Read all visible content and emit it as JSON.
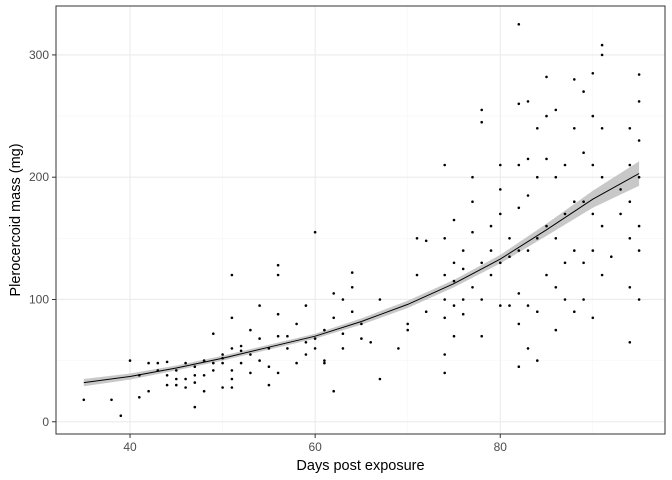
{
  "chart_data": {
    "type": "scatter",
    "title": "",
    "xlabel": "Days post exposure",
    "ylabel": "Plerocercoid mass (mg)",
    "xlim": [
      32.0,
      97.8
    ],
    "ylim": [
      -10,
      340
    ],
    "x_ticks": [
      40,
      60,
      80
    ],
    "y_ticks": [
      0,
      100,
      200,
      300
    ],
    "grid": true,
    "legend": "none",
    "colors": {
      "points": "#000000",
      "trend": "#000000",
      "ribbon": "#bebebe",
      "grid_major": "#ebebeb",
      "grid_minor": "#f5f5f5",
      "panel_border": "#333333"
    },
    "trend": {
      "label": "smooth fit",
      "x": [
        35,
        40,
        45,
        50,
        55,
        60,
        65,
        70,
        75,
        80,
        85,
        90,
        95
      ],
      "y": [
        32,
        37,
        44,
        52,
        61,
        70,
        82,
        96,
        113,
        133,
        157,
        182,
        203
      ],
      "ci_half_width": [
        3,
        2.5,
        2,
        2,
        2,
        2,
        2.5,
        3,
        3,
        3.5,
        5,
        7,
        10
      ]
    },
    "points": [
      [
        35,
        18
      ],
      [
        38,
        18
      ],
      [
        39,
        5
      ],
      [
        40,
        50
      ],
      [
        41,
        20
      ],
      [
        41,
        38
      ],
      [
        42,
        25
      ],
      [
        42,
        48
      ],
      [
        43,
        42
      ],
      [
        43,
        48
      ],
      [
        44,
        30
      ],
      [
        44,
        38
      ],
      [
        44,
        49
      ],
      [
        45,
        35
      ],
      [
        45,
        42
      ],
      [
        45,
        30
      ],
      [
        46,
        48
      ],
      [
        46,
        35
      ],
      [
        46,
        28
      ],
      [
        47,
        12
      ],
      [
        47,
        45
      ],
      [
        47,
        32
      ],
      [
        47,
        38
      ],
      [
        48,
        25
      ],
      [
        48,
        50
      ],
      [
        48,
        38
      ],
      [
        49,
        72
      ],
      [
        49,
        48
      ],
      [
        49,
        42
      ],
      [
        50,
        28
      ],
      [
        50,
        55
      ],
      [
        50,
        48
      ],
      [
        50,
        52
      ],
      [
        51,
        120
      ],
      [
        51,
        85
      ],
      [
        51,
        60
      ],
      [
        51,
        28
      ],
      [
        51,
        35
      ],
      [
        51,
        42
      ],
      [
        52,
        58
      ],
      [
        52,
        62
      ],
      [
        52,
        48
      ],
      [
        53,
        75
      ],
      [
        53,
        40
      ],
      [
        53,
        55
      ],
      [
        54,
        68
      ],
      [
        54,
        95
      ],
      [
        54,
        50
      ],
      [
        55,
        45
      ],
      [
        55,
        30
      ],
      [
        55,
        60
      ],
      [
        56,
        88
      ],
      [
        56,
        128
      ],
      [
        56,
        120
      ],
      [
        56,
        70
      ],
      [
        56,
        40
      ],
      [
        57,
        60
      ],
      [
        57,
        70
      ],
      [
        58,
        80
      ],
      [
        58,
        48
      ],
      [
        59,
        65
      ],
      [
        59,
        95
      ],
      [
        59,
        55
      ],
      [
        60,
        155
      ],
      [
        60,
        68
      ],
      [
        60,
        60
      ],
      [
        61,
        50
      ],
      [
        61,
        75
      ],
      [
        61,
        48
      ],
      [
        62,
        85
      ],
      [
        62,
        105
      ],
      [
        62,
        25
      ],
      [
        63,
        72
      ],
      [
        63,
        60
      ],
      [
        63,
        100
      ],
      [
        64,
        110
      ],
      [
        64,
        90
      ],
      [
        64,
        122
      ],
      [
        65,
        80
      ],
      [
        65,
        68
      ],
      [
        66,
        65
      ],
      [
        67,
        35
      ],
      [
        67,
        100
      ],
      [
        69,
        60
      ],
      [
        70,
        75
      ],
      [
        70,
        80
      ],
      [
        71,
        150
      ],
      [
        71,
        120
      ],
      [
        72,
        148
      ],
      [
        72,
        90
      ],
      [
        74,
        40
      ],
      [
        74,
        55
      ],
      [
        74,
        85
      ],
      [
        74,
        100
      ],
      [
        74,
        120
      ],
      [
        74,
        150
      ],
      [
        74,
        210
      ],
      [
        75,
        95
      ],
      [
        75,
        115
      ],
      [
        75,
        130
      ],
      [
        75,
        165
      ],
      [
        75,
        70
      ],
      [
        76,
        100
      ],
      [
        76,
        125
      ],
      [
        76,
        140
      ],
      [
        76,
        88
      ],
      [
        77,
        110
      ],
      [
        77,
        180
      ],
      [
        77,
        200
      ],
      [
        77,
        155
      ],
      [
        78,
        245
      ],
      [
        78,
        255
      ],
      [
        78,
        130
      ],
      [
        78,
        100
      ],
      [
        78,
        70
      ],
      [
        79,
        120
      ],
      [
        79,
        160
      ],
      [
        79,
        140
      ],
      [
        80,
        95
      ],
      [
        80,
        130
      ],
      [
        80,
        170
      ],
      [
        80,
        190
      ],
      [
        80,
        210
      ],
      [
        81,
        95
      ],
      [
        81,
        135
      ],
      [
        81,
        150
      ],
      [
        82,
        45
      ],
      [
        82,
        80
      ],
      [
        82,
        105
      ],
      [
        82,
        140
      ],
      [
        82,
        175
      ],
      [
        82,
        210
      ],
      [
        82,
        260
      ],
      [
        82,
        325
      ],
      [
        83,
        60
      ],
      [
        83,
        95
      ],
      [
        83,
        140
      ],
      [
        83,
        185
      ],
      [
        83,
        215
      ],
      [
        83,
        262
      ],
      [
        84,
        50
      ],
      [
        84,
        90
      ],
      [
        84,
        150
      ],
      [
        84,
        200
      ],
      [
        84,
        240
      ],
      [
        85,
        120
      ],
      [
        85,
        160
      ],
      [
        85,
        215
      ],
      [
        85,
        250
      ],
      [
        85,
        282
      ],
      [
        86,
        75
      ],
      [
        86,
        110
      ],
      [
        86,
        150
      ],
      [
        86,
        200
      ],
      [
        86,
        255
      ],
      [
        87,
        100
      ],
      [
        87,
        130
      ],
      [
        87,
        170
      ],
      [
        87,
        210
      ],
      [
        88,
        90
      ],
      [
        88,
        140
      ],
      [
        88,
        180
      ],
      [
        88,
        240
      ],
      [
        88,
        280
      ],
      [
        89,
        100
      ],
      [
        89,
        130
      ],
      [
        89,
        180
      ],
      [
        89,
        220
      ],
      [
        89,
        270
      ],
      [
        90,
        85
      ],
      [
        90,
        140
      ],
      [
        90,
        170
      ],
      [
        90,
        210
      ],
      [
        90,
        250
      ],
      [
        90,
        285
      ],
      [
        91,
        120
      ],
      [
        91,
        160
      ],
      [
        91,
        200
      ],
      [
        91,
        240
      ],
      [
        91,
        300
      ],
      [
        91,
        308
      ],
      [
        92,
        135
      ],
      [
        93,
        170
      ],
      [
        93,
        190
      ],
      [
        94,
        65
      ],
      [
        94,
        110
      ],
      [
        94,
        150
      ],
      [
        94,
        180
      ],
      [
        94,
        210
      ],
      [
        94,
        240
      ],
      [
        95,
        100
      ],
      [
        95,
        140
      ],
      [
        95,
        160
      ],
      [
        95,
        200
      ],
      [
        95,
        230
      ],
      [
        95,
        262
      ],
      [
        95,
        284
      ]
    ]
  }
}
